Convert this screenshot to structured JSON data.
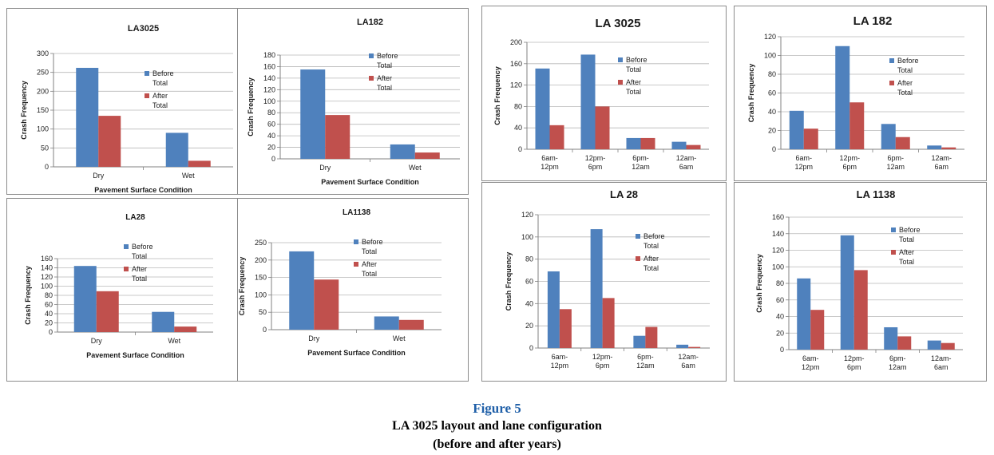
{
  "colors": {
    "before": "#4f81bd",
    "after": "#c0504d",
    "grid": "#b8b8b8",
    "axis": "#808080"
  },
  "figure": {
    "label": "Figure 5",
    "title": "LA 3025 layout and lane configuration",
    "subtitle": "(before and after years)"
  },
  "chart_data": [
    {
      "type": "bar",
      "title": "LA3025",
      "categories": [
        "Dry",
        "Wet"
      ],
      "series": [
        {
          "name": "Before Total",
          "values": [
            262,
            90
          ]
        },
        {
          "name": "After Total",
          "values": [
            135,
            16
          ]
        }
      ],
      "ylim": [
        0,
        300
      ],
      "yticks": [
        0,
        50,
        100,
        150,
        200,
        250,
        300
      ],
      "xlabel": "Pavement Surface Condition",
      "ylabel": "Crash Frequency",
      "grid": true,
      "legend": "right"
    },
    {
      "type": "bar",
      "title": "LA182",
      "categories": [
        "Dry",
        "Wet"
      ],
      "series": [
        {
          "name": "Before Total",
          "values": [
            155,
            25
          ]
        },
        {
          "name": "After Total",
          "values": [
            76,
            11
          ]
        }
      ],
      "ylim": [
        0,
        180
      ],
      "yticks": [
        0,
        20,
        40,
        60,
        80,
        100,
        120,
        140,
        160,
        180
      ],
      "xlabel": "Pavement Surface Condition",
      "ylabel": "Crash Frequency",
      "grid": true,
      "legend": "right"
    },
    {
      "type": "bar",
      "title": "LA28",
      "categories": [
        "Dry",
        "Wet"
      ],
      "series": [
        {
          "name": "Before Total",
          "values": [
            144,
            44
          ]
        },
        {
          "name": "After Total",
          "values": [
            89,
            12
          ]
        }
      ],
      "ylim": [
        0,
        160
      ],
      "yticks": [
        0,
        20,
        40,
        60,
        80,
        100,
        120,
        140,
        160
      ],
      "xlabel": "Pavement Surface Condition",
      "ylabel": "Crash Frequency",
      "grid": true,
      "legend": "right"
    },
    {
      "type": "bar",
      "title": "LA1138",
      "categories": [
        "Dry",
        "Wet"
      ],
      "series": [
        {
          "name": "Before Total",
          "values": [
            225,
            38
          ]
        },
        {
          "name": "After Total",
          "values": [
            144,
            28
          ]
        }
      ],
      "ylim": [
        0,
        250
      ],
      "yticks": [
        0,
        50,
        100,
        150,
        200,
        250
      ],
      "xlabel": "Pavement Surface Condition",
      "ylabel": "Crash Frequency",
      "grid": true,
      "legend": "right"
    },
    {
      "type": "bar",
      "title": "LA 3025",
      "categories": [
        "6am-12pm",
        "12pm-6pm",
        "6pm-12am",
        "12am-6am"
      ],
      "series": [
        {
          "name": "Before Total",
          "values": [
            151,
            177,
            21,
            14
          ]
        },
        {
          "name": "After Total",
          "values": [
            45,
            80,
            21,
            8
          ]
        }
      ],
      "ylim": [
        0,
        200
      ],
      "yticks": [
        0,
        40,
        80,
        120,
        160,
        200
      ],
      "xlabel": "",
      "ylabel": "Crash Frequency",
      "grid": true,
      "legend": "right"
    },
    {
      "type": "bar",
      "title": "LA 182",
      "categories": [
        "6am-12pm",
        "12pm-6pm",
        "6pm-12am",
        "12am-6am"
      ],
      "series": [
        {
          "name": "Before Total",
          "values": [
            41,
            110,
            27,
            4
          ]
        },
        {
          "name": "After Total",
          "values": [
            22,
            50,
            13,
            2
          ]
        }
      ],
      "ylim": [
        0,
        120
      ],
      "yticks": [
        0,
        20,
        40,
        60,
        80,
        100,
        120
      ],
      "xlabel": "",
      "ylabel": "Crash Frequency",
      "grid": true,
      "legend": "right"
    },
    {
      "type": "bar",
      "title": "LA 28",
      "categories": [
        "6am-12pm",
        "12pm-6pm",
        "6pm-12am",
        "12am-6am"
      ],
      "series": [
        {
          "name": "Before Total",
          "values": [
            69,
            107,
            11,
            3
          ]
        },
        {
          "name": "After Total",
          "values": [
            35,
            45,
            19,
            1
          ]
        }
      ],
      "ylim": [
        0,
        120
      ],
      "yticks": [
        0,
        20,
        40,
        60,
        80,
        100,
        120
      ],
      "xlabel": "",
      "ylabel": "Crash Frequency",
      "grid": true,
      "legend": "right"
    },
    {
      "type": "bar",
      "title": "LA 1138",
      "categories": [
        "6am-12pm",
        "12pm-6pm",
        "6pm-12am",
        "12am-6am"
      ],
      "series": [
        {
          "name": "Before Total",
          "values": [
            86,
            138,
            27,
            11
          ]
        },
        {
          "name": "After Total",
          "values": [
            48,
            96,
            16,
            8
          ]
        }
      ],
      "ylim": [
        0,
        160
      ],
      "yticks": [
        0,
        20,
        40,
        60,
        80,
        100,
        120,
        140,
        160
      ],
      "xlabel": "",
      "ylabel": "Crash Frequency",
      "grid": true,
      "legend": "right"
    }
  ]
}
